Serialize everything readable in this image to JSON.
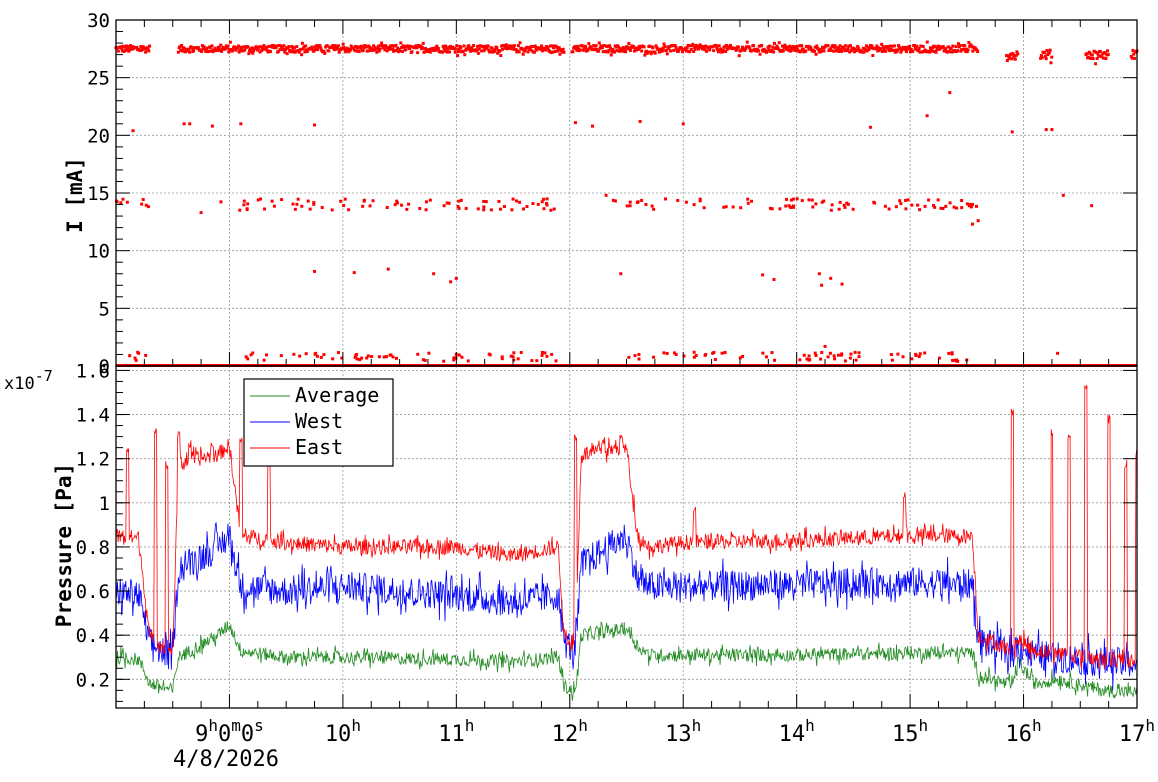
{
  "chart_data": [
    {
      "type": "scatter",
      "ylabel": "I [mA]",
      "ylim": [
        0,
        30
      ],
      "yticks": [
        0,
        5,
        10,
        15,
        20,
        25,
        30
      ],
      "xlim": [
        8.0,
        17.0
      ],
      "grid": true,
      "series": [
        {
          "color": "#ff0000",
          "bands": [
            {
              "y": 27.5,
              "spread": 0.3,
              "segments": [
                [
                  8.0,
                  8.3
                ],
                [
                  8.55,
                  11.95
                ],
                [
                  12.02,
                  15.6
                ]
              ]
            },
            {
              "y": 27.0,
              "spread": 0.4,
              "segments": [
                [
                  15.85,
                  15.95
                ],
                [
                  16.15,
                  16.25
                ],
                [
                  16.55,
                  16.75
                ],
                [
                  16.95,
                  17.0
                ]
              ]
            },
            {
              "y": 14.0,
              "spread": 0.5,
              "segments": [
                [
                  8.0,
                  8.3
                ],
                [
                  8.9,
                  11.9
                ],
                [
                  12.3,
                  15.6
                ]
              ],
              "count": 170
            },
            {
              "y": 0.8,
              "spread": 0.4,
              "segments": [
                [
                  8.1,
                  8.3
                ],
                [
                  9.1,
                  11.9
                ],
                [
                  12.5,
                  15.5
                ]
              ],
              "count": 140
            },
            {
              "y": 0.0,
              "spread": 0.0,
              "segments": [
                [
                  8.0,
                  17.0
                ]
              ]
            }
          ],
          "points": [
            [
              8.1,
              14.2
            ],
            [
              8.15,
              20.4
            ],
            [
              8.6,
              21.0
            ],
            [
              8.65,
              21.0
            ],
            [
              8.85,
              20.8
            ],
            [
              9.1,
              21.0
            ],
            [
              9.75,
              20.9
            ],
            [
              12.05,
              21.1
            ],
            [
              12.2,
              20.8
            ],
            [
              12.62,
              21.2
            ],
            [
              13.0,
              21.0
            ],
            [
              14.65,
              20.7
            ],
            [
              15.15,
              21.7
            ],
            [
              15.35,
              23.7
            ],
            [
              15.9,
              20.3
            ],
            [
              16.2,
              20.5
            ],
            [
              16.25,
              20.5
            ],
            [
              8.75,
              13.3
            ],
            [
              12.32,
              14.8
            ],
            [
              15.6,
              12.6
            ],
            [
              15.55,
              12.3
            ],
            [
              16.35,
              14.8
            ],
            [
              16.6,
              13.9
            ],
            [
              9.75,
              8.2
            ],
            [
              10.1,
              8.1
            ],
            [
              10.4,
              8.4
            ],
            [
              10.8,
              8.0
            ],
            [
              10.95,
              7.3
            ],
            [
              11.0,
              7.6
            ],
            [
              12.45,
              8.0
            ],
            [
              13.7,
              7.9
            ],
            [
              13.8,
              7.5
            ],
            [
              14.2,
              8.0
            ],
            [
              14.22,
              7.0
            ],
            [
              14.3,
              7.6
            ],
            [
              14.4,
              7.1
            ],
            [
              16.3,
              1.1
            ],
            [
              8.2,
              1.1
            ],
            [
              14.25,
              1.7
            ]
          ]
        }
      ]
    },
    {
      "type": "line",
      "ylabel": "Pressure [Pa]",
      "exponent": "x10",
      "exponent_power": "-7",
      "ylim": [
        0.07,
        1.62
      ],
      "yticks": [
        0.2,
        0.4,
        0.6,
        0.8,
        1,
        1.2,
        1.4,
        1.6
      ],
      "ytick_labels": [
        "0.2",
        "0.4",
        "0.6",
        "0.8",
        "1",
        "1.2",
        "1.4",
        "1.6"
      ],
      "xlim": [
        8.0,
        17.0
      ],
      "grid": true,
      "x_tick_labels": [
        {
          "x": 9,
          "base": "9",
          "sup": "h",
          "rest_m": "0",
          "sup_m": "m",
          "rest_s": "0",
          "sup_s": "s"
        },
        {
          "x": 10,
          "base": "10",
          "sup": "h"
        },
        {
          "x": 11,
          "base": "11",
          "sup": "h"
        },
        {
          "x": 12,
          "base": "12",
          "sup": "h"
        },
        {
          "x": 13,
          "base": "13",
          "sup": "h"
        },
        {
          "x": 14,
          "base": "14",
          "sup": "h"
        },
        {
          "x": 15,
          "base": "15",
          "sup": "h"
        },
        {
          "x": 16,
          "base": "16",
          "sup": "h"
        },
        {
          "x": 17,
          "base": "17",
          "sup": "h"
        }
      ],
      "date_label": "4/8/2026",
      "legend_position": "top-left",
      "series": [
        {
          "name": "Average",
          "color": "#228b22",
          "noise": 0.03,
          "values": [
            [
              8.0,
              0.3
            ],
            [
              8.2,
              0.29
            ],
            [
              8.3,
              0.18
            ],
            [
              8.5,
              0.15
            ],
            [
              8.55,
              0.3
            ],
            [
              8.9,
              0.4
            ],
            [
              9.0,
              0.45
            ],
            [
              9.1,
              0.33
            ],
            [
              9.5,
              0.3
            ],
            [
              10.0,
              0.3
            ],
            [
              11.0,
              0.29
            ],
            [
              11.5,
              0.28
            ],
            [
              11.9,
              0.3
            ],
            [
              11.95,
              0.17
            ],
            [
              12.05,
              0.14
            ],
            [
              12.1,
              0.4
            ],
            [
              12.5,
              0.43
            ],
            [
              12.6,
              0.35
            ],
            [
              12.7,
              0.31
            ],
            [
              13.0,
              0.31
            ],
            [
              14.0,
              0.31
            ],
            [
              15.0,
              0.32
            ],
            [
              15.55,
              0.32
            ],
            [
              15.6,
              0.22
            ],
            [
              15.9,
              0.17
            ],
            [
              15.95,
              0.28
            ],
            [
              16.1,
              0.18
            ],
            [
              16.3,
              0.2
            ],
            [
              16.7,
              0.15
            ],
            [
              17.0,
              0.14
            ]
          ]
        },
        {
          "name": "West",
          "color": "#0000ff",
          "noise": 0.07,
          "values": [
            [
              8.0,
              0.6
            ],
            [
              8.2,
              0.58
            ],
            [
              8.3,
              0.36
            ],
            [
              8.5,
              0.3
            ],
            [
              8.55,
              0.7
            ],
            [
              8.9,
              0.8
            ],
            [
              9.0,
              0.85
            ],
            [
              9.1,
              0.62
            ],
            [
              9.5,
              0.6
            ],
            [
              10.0,
              0.62
            ],
            [
              11.0,
              0.58
            ],
            [
              11.5,
              0.55
            ],
            [
              11.9,
              0.58
            ],
            [
              11.95,
              0.37
            ],
            [
              12.05,
              0.33
            ],
            [
              12.1,
              0.72
            ],
            [
              12.5,
              0.85
            ],
            [
              12.6,
              0.65
            ],
            [
              12.7,
              0.62
            ],
            [
              13.0,
              0.62
            ],
            [
              14.0,
              0.63
            ],
            [
              15.0,
              0.64
            ],
            [
              15.55,
              0.63
            ],
            [
              15.6,
              0.38
            ],
            [
              15.9,
              0.31
            ],
            [
              15.95,
              0.36
            ],
            [
              16.1,
              0.31
            ],
            [
              16.3,
              0.3
            ],
            [
              16.7,
              0.28
            ],
            [
              17.0,
              0.27
            ]
          ]
        },
        {
          "name": "East",
          "color": "#ff0000",
          "noise": 0.035,
          "values": [
            [
              8.0,
              0.85
            ],
            [
              8.2,
              0.84
            ],
            [
              8.3,
              0.38
            ],
            [
              8.5,
              0.33
            ],
            [
              8.55,
              1.18
            ],
            [
              8.9,
              1.22
            ],
            [
              9.0,
              1.26
            ],
            [
              9.1,
              0.85
            ],
            [
              9.5,
              0.82
            ],
            [
              10.0,
              0.8
            ],
            [
              11.0,
              0.8
            ],
            [
              11.5,
              0.76
            ],
            [
              11.9,
              0.8
            ],
            [
              11.95,
              0.39
            ],
            [
              12.05,
              0.35
            ],
            [
              12.1,
              1.22
            ],
            [
              12.5,
              1.25
            ],
            [
              12.6,
              0.85
            ],
            [
              12.7,
              0.8
            ],
            [
              13.0,
              0.82
            ],
            [
              14.0,
              0.83
            ],
            [
              15.0,
              0.85
            ],
            [
              15.55,
              0.85
            ],
            [
              15.6,
              0.4
            ],
            [
              15.9,
              0.33
            ],
            [
              15.95,
              0.38
            ],
            [
              16.1,
              0.33
            ],
            [
              16.3,
              0.32
            ],
            [
              16.7,
              0.29
            ],
            [
              17.0,
              0.28
            ]
          ]
        }
      ],
      "spikes": [
        {
          "x": 8.1,
          "y": 1.25
        },
        {
          "x": 8.35,
          "y": 1.36
        },
        {
          "x": 8.45,
          "y": 1.2
        },
        {
          "x": 8.55,
          "y": 1.33
        },
        {
          "x": 8.65,
          "y": 1.3
        },
        {
          "x": 8.85,
          "y": 1.3
        },
        {
          "x": 9.1,
          "y": 1.32
        },
        {
          "x": 9.35,
          "y": 1.22
        },
        {
          "x": 12.05,
          "y": 1.32
        },
        {
          "x": 12.3,
          "y": 1.3
        },
        {
          "x": 12.45,
          "y": 1.31
        },
        {
          "x": 13.1,
          "y": 1.0
        },
        {
          "x": 14.95,
          "y": 1.05
        },
        {
          "x": 15.9,
          "y": 1.43
        },
        {
          "x": 16.25,
          "y": 1.35
        },
        {
          "x": 16.4,
          "y": 1.33
        },
        {
          "x": 16.55,
          "y": 1.55
        },
        {
          "x": 16.75,
          "y": 1.4
        },
        {
          "x": 16.9,
          "y": 1.2
        },
        {
          "x": 17.0,
          "y": 1.25
        }
      ]
    }
  ]
}
